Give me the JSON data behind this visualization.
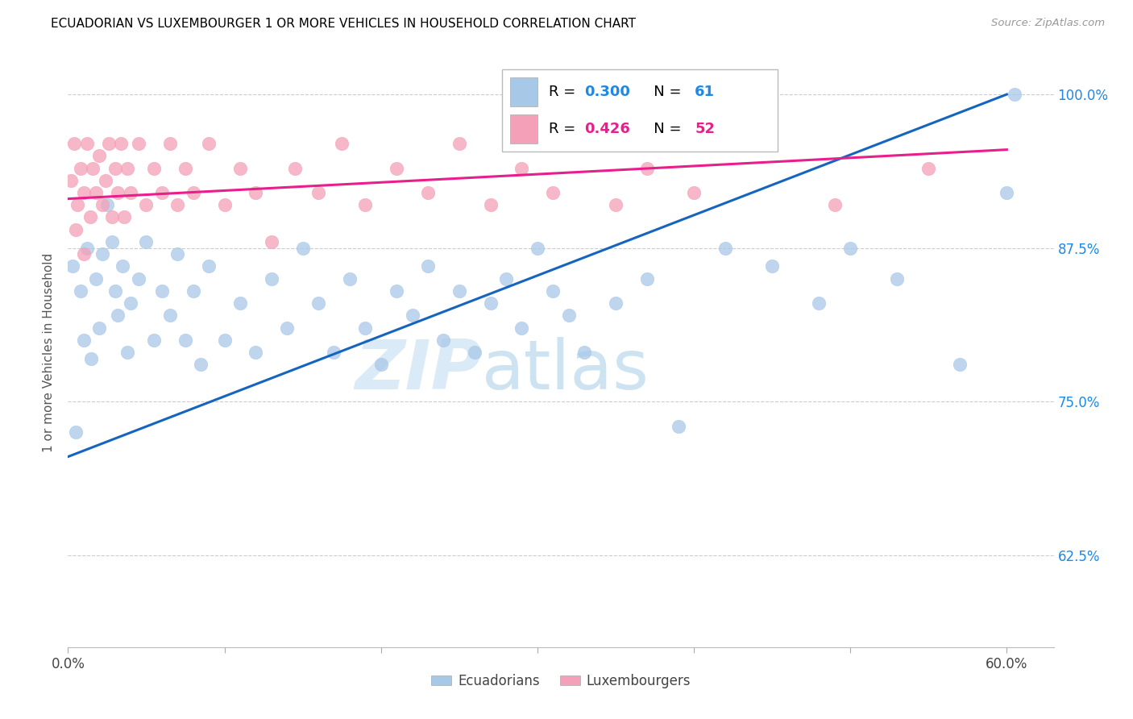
{
  "title": "ECUADORIAN VS LUXEMBOURGER 1 OR MORE VEHICLES IN HOUSEHOLD CORRELATION CHART",
  "source": "Source: ZipAtlas.com",
  "ylabel_label": "1 or more Vehicles in Household",
  "xlim": [
    0.0,
    63.0
  ],
  "ylim": [
    55.0,
    103.0
  ],
  "ecuadorian_color": "#a8c8e8",
  "luxembourger_color": "#f4a0b8",
  "ecuadorian_line_color": "#1565C0",
  "luxembourger_line_color": "#E91E8C",
  "R_ecuadorian": "0.300",
  "N_ecuadorian": "61",
  "R_luxembourger": "0.426",
  "N_luxembourger": "52",
  "ytick_vals": [
    62.5,
    75.0,
    87.5,
    100.0
  ],
  "xtick_show": [
    0.0,
    60.0
  ],
  "ec_line_x0": 0.0,
  "ec_line_y0": 70.5,
  "ec_line_x1": 60.0,
  "ec_line_y1": 100.0,
  "lx_line_x0": 0.0,
  "lx_line_y0": 91.5,
  "lx_line_x1": 60.0,
  "lx_line_y1": 95.5,
  "ecuadorian_points_x": [
    0.3,
    0.5,
    0.8,
    1.0,
    1.2,
    1.5,
    1.8,
    2.0,
    2.2,
    2.5,
    2.8,
    3.0,
    3.2,
    3.5,
    3.8,
    4.0,
    4.5,
    5.0,
    5.5,
    6.0,
    6.5,
    7.0,
    7.5,
    8.0,
    8.5,
    9.0,
    10.0,
    11.0,
    12.0,
    13.0,
    14.0,
    15.0,
    16.0,
    17.0,
    18.0,
    19.0,
    20.0,
    21.0,
    22.0,
    23.0,
    24.0,
    25.0,
    26.0,
    27.0,
    28.0,
    29.0,
    30.0,
    31.0,
    32.0,
    33.0,
    35.0,
    37.0,
    39.0,
    42.0,
    45.0,
    48.0,
    50.0,
    53.0,
    57.0,
    60.0,
    60.5
  ],
  "ecuadorian_points_y": [
    86.0,
    72.5,
    84.0,
    80.0,
    87.5,
    78.5,
    85.0,
    81.0,
    87.0,
    91.0,
    88.0,
    84.0,
    82.0,
    86.0,
    79.0,
    83.0,
    85.0,
    88.0,
    80.0,
    84.0,
    82.0,
    87.0,
    80.0,
    84.0,
    78.0,
    86.0,
    80.0,
    83.0,
    79.0,
    85.0,
    81.0,
    87.5,
    83.0,
    79.0,
    85.0,
    81.0,
    78.0,
    84.0,
    82.0,
    86.0,
    80.0,
    84.0,
    79.0,
    83.0,
    85.0,
    81.0,
    87.5,
    84.0,
    82.0,
    79.0,
    83.0,
    85.0,
    73.0,
    87.5,
    86.0,
    83.0,
    87.5,
    85.0,
    78.0,
    92.0,
    100.0
  ],
  "luxembourger_points_x": [
    0.2,
    0.4,
    0.6,
    0.8,
    1.0,
    1.2,
    1.4,
    1.6,
    1.8,
    2.0,
    2.2,
    2.4,
    2.6,
    2.8,
    3.0,
    3.2,
    3.4,
    3.6,
    3.8,
    4.0,
    4.5,
    5.0,
    5.5,
    6.0,
    6.5,
    7.0,
    7.5,
    8.0,
    9.0,
    10.0,
    11.0,
    12.0,
    13.0,
    14.5,
    16.0,
    17.5,
    19.0,
    21.0,
    23.0,
    25.0,
    27.0,
    29.0,
    31.0,
    33.0,
    35.0,
    37.0,
    40.0,
    44.0,
    49.0,
    55.0,
    0.5,
    1.0
  ],
  "luxembourger_points_y": [
    93.0,
    96.0,
    91.0,
    94.0,
    92.0,
    96.0,
    90.0,
    94.0,
    92.0,
    95.0,
    91.0,
    93.0,
    96.0,
    90.0,
    94.0,
    92.0,
    96.0,
    90.0,
    94.0,
    92.0,
    96.0,
    91.0,
    94.0,
    92.0,
    96.0,
    91.0,
    94.0,
    92.0,
    96.0,
    91.0,
    94.0,
    92.0,
    88.0,
    94.0,
    92.0,
    96.0,
    91.0,
    94.0,
    92.0,
    96.0,
    91.0,
    94.0,
    92.0,
    96.0,
    91.0,
    94.0,
    92.0,
    96.0,
    91.0,
    94.0,
    89.0,
    87.0
  ]
}
